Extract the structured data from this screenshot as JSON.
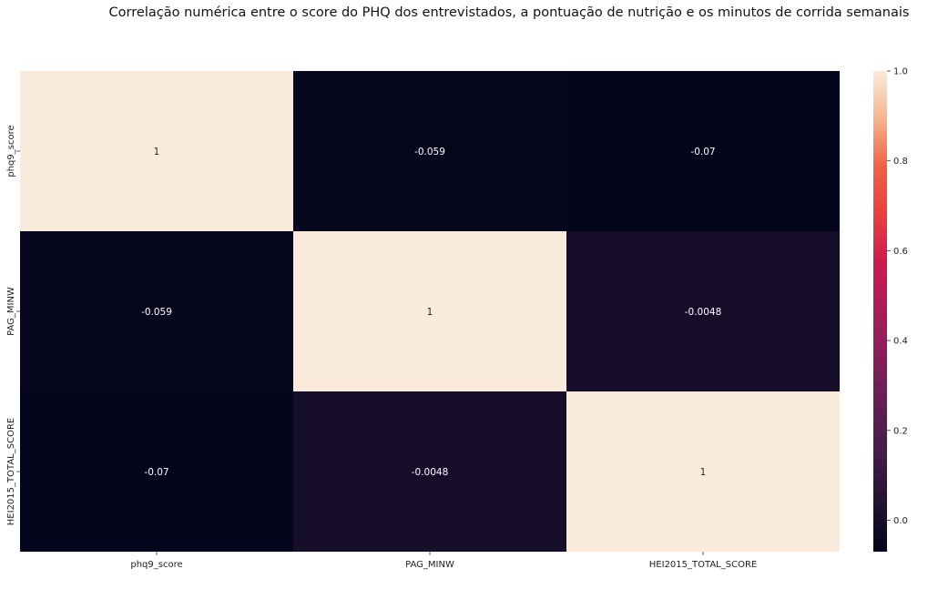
{
  "chart_data": {
    "type": "heatmap",
    "title": "Correlação numérica entre o score do PHQ dos entrevistados, a pontuação de nutrição e os minutos de corrida semanais",
    "xlabel": "",
    "ylabel": "",
    "rows": [
      "phq9_score",
      "PAG_MINW",
      "HEI2015_TOTAL_SCORE"
    ],
    "columns": [
      "phq9_score",
      "PAG_MINW",
      "HEI2015_TOTAL_SCORE"
    ],
    "values": [
      [
        1,
        -0.059,
        -0.07
      ],
      [
        -0.059,
        1,
        -0.0048
      ],
      [
        -0.07,
        -0.0048,
        1
      ]
    ],
    "annotations": [
      [
        "1",
        "-0.059",
        "-0.07"
      ],
      [
        "-0.059",
        "1",
        "-0.0048"
      ],
      [
        "-0.07",
        "-0.0048",
        "1"
      ]
    ],
    "colormap": "rocket",
    "colorbar": {
      "range": [
        -0.07,
        1.0
      ],
      "ticks": [
        0.0,
        0.2,
        0.4,
        0.6,
        0.8,
        1.0
      ],
      "tick_labels": [
        "0.0",
        "0.2",
        "0.4",
        "0.6",
        "0.8",
        "1.0"
      ]
    }
  }
}
